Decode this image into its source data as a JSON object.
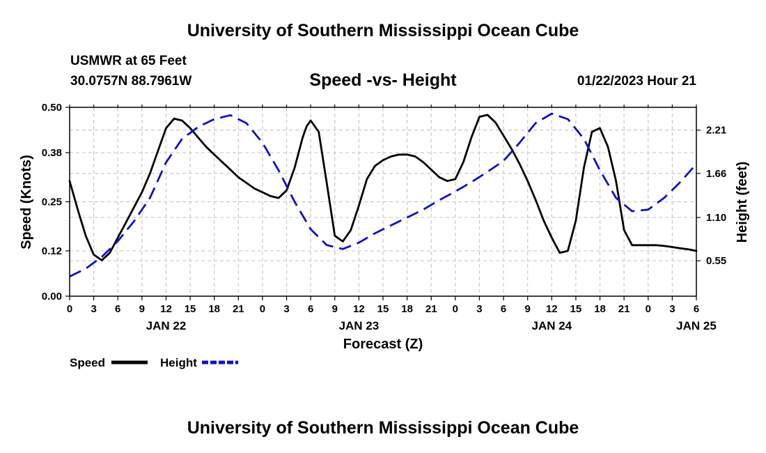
{
  "header": {
    "title": "University of Southern Mississippi Ocean Cube",
    "station": "USMWR at 65 Feet",
    "coordinates": "30.0757N  88.7961W",
    "subtitle": "Speed -vs- Height",
    "datetime": "01/22/2023 Hour 21"
  },
  "footer": {
    "title": "University of Southern Mississippi Ocean Cube"
  },
  "chart_data": {
    "type": "line",
    "title": "Speed -vs- Height",
    "xlabel": "Forecast (Z)",
    "ylabel": "Speed (Knots)",
    "y2label": "Height (feet)",
    "xlim": [
      0,
      78
    ],
    "ylim": [
      0,
      0.5
    ],
    "y2lim": [
      0.1,
      2.5
    ],
    "grid": true,
    "x_ticks": [
      0,
      3,
      6,
      9,
      12,
      15,
      18,
      21,
      24,
      27,
      30,
      33,
      36,
      39,
      42,
      45,
      48,
      51,
      54,
      57,
      60,
      63,
      66,
      69,
      72,
      75,
      78
    ],
    "x_tick_labels": [
      "0",
      "3",
      "6",
      "9",
      "12",
      "15",
      "18",
      "21",
      "0",
      "3",
      "6",
      "9",
      "12",
      "15",
      "18",
      "21",
      "0",
      "3",
      "6",
      "9",
      "12",
      "15",
      "18",
      "21",
      "0",
      "3",
      "6"
    ],
    "date_labels": [
      {
        "label": "JAN 22",
        "x": 12
      },
      {
        "label": "JAN 23",
        "x": 36
      },
      {
        "label": "JAN 24",
        "x": 60
      },
      {
        "label": "JAN 25",
        "x": 78
      }
    ],
    "y_ticks": [
      0.0,
      0.12,
      0.25,
      0.38,
      0.5
    ],
    "y_tick_labels": [
      "0.00",
      "0.12",
      "0.25",
      "0.38",
      "0.50"
    ],
    "y2_ticks": [
      0.55,
      1.1,
      1.66,
      2.21
    ],
    "y2_tick_labels": [
      "0.55",
      "1.10",
      "1.66",
      "2.21"
    ],
    "legend": [
      {
        "label": "Speed",
        "color": "#000000",
        "style": "solid"
      },
      {
        "label": "Height",
        "color": "#1010c8",
        "style": "dashed"
      }
    ],
    "series": [
      {
        "name": "Speed",
        "axis": "left",
        "color": "#000000",
        "style": "solid",
        "x": [
          0,
          1,
          2,
          3,
          4,
          5,
          6,
          7,
          8,
          9,
          10,
          11,
          12,
          13,
          14,
          15,
          16,
          17,
          18,
          19,
          20,
          21,
          22,
          23,
          24,
          25,
          26,
          27,
          28,
          29,
          29.5,
          30,
          31,
          32,
          33,
          34,
          35,
          36,
          37,
          38,
          39,
          40,
          41,
          42,
          43,
          44,
          45,
          46,
          47,
          48,
          49,
          50,
          51,
          52,
          53,
          54,
          55,
          56,
          57,
          58,
          59,
          60,
          61,
          62,
          63,
          64,
          65,
          66,
          67,
          68,
          69,
          70,
          71,
          72,
          73,
          74,
          75,
          76,
          77,
          78
        ],
        "values": [
          0.305,
          0.23,
          0.16,
          0.11,
          0.095,
          0.115,
          0.155,
          0.195,
          0.235,
          0.275,
          0.325,
          0.385,
          0.445,
          0.47,
          0.465,
          0.445,
          0.42,
          0.395,
          0.375,
          0.355,
          0.335,
          0.315,
          0.3,
          0.285,
          0.275,
          0.265,
          0.26,
          0.28,
          0.34,
          0.42,
          0.45,
          0.465,
          0.435,
          0.3,
          0.16,
          0.145,
          0.175,
          0.24,
          0.31,
          0.345,
          0.36,
          0.37,
          0.375,
          0.375,
          0.37,
          0.355,
          0.335,
          0.315,
          0.305,
          0.31,
          0.355,
          0.42,
          0.475,
          0.48,
          0.46,
          0.425,
          0.39,
          0.35,
          0.305,
          0.255,
          0.2,
          0.155,
          0.115,
          0.12,
          0.2,
          0.34,
          0.435,
          0.445,
          0.395,
          0.305,
          0.175,
          0.135,
          0.135,
          0.135,
          0.135,
          0.133,
          0.13,
          0.127,
          0.124,
          0.12
        ]
      },
      {
        "name": "Height",
        "axis": "right",
        "color": "#1010c8",
        "style": "dashed",
        "x": [
          0,
          2,
          4,
          6,
          8,
          10,
          12,
          14,
          16,
          18,
          20,
          22,
          24,
          26,
          28,
          30,
          32,
          34,
          36,
          38,
          40,
          42,
          44,
          46,
          48,
          50,
          52,
          54,
          56,
          58,
          60,
          62,
          64,
          66,
          68,
          70,
          72,
          74,
          76,
          78
        ],
        "values": [
          0.35,
          0.45,
          0.6,
          0.8,
          1.05,
          1.35,
          1.8,
          2.1,
          2.25,
          2.35,
          2.4,
          2.3,
          2.05,
          1.7,
          1.3,
          0.95,
          0.75,
          0.7,
          0.78,
          0.9,
          1.0,
          1.1,
          1.2,
          1.32,
          1.43,
          1.55,
          1.68,
          1.82,
          2.05,
          2.3,
          2.42,
          2.35,
          2.1,
          1.7,
          1.35,
          1.18,
          1.2,
          1.35,
          1.55,
          1.78
        ]
      }
    ]
  }
}
